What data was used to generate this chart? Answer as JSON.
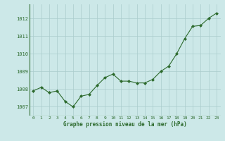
{
  "x": [
    0,
    1,
    2,
    3,
    4,
    5,
    6,
    7,
    8,
    9,
    10,
    11,
    12,
    13,
    14,
    15,
    16,
    17,
    18,
    19,
    20,
    21,
    22,
    23
  ],
  "y": [
    1007.9,
    1008.1,
    1007.8,
    1007.9,
    1007.3,
    1007.0,
    1007.6,
    1007.7,
    1008.2,
    1008.65,
    1008.85,
    1008.45,
    1008.45,
    1008.35,
    1008.35,
    1008.55,
    1009.0,
    1009.3,
    1010.0,
    1010.85,
    1011.55,
    1011.6,
    1012.0,
    1012.3
  ],
  "line_color": "#2d6a2d",
  "marker_color": "#2d6a2d",
  "bg_color": "#cce8e8",
  "grid_color": "#aacccc",
  "xlabel": "Graphe pression niveau de la mer (hPa)",
  "xlabel_color": "#2d6a2d",
  "tick_color": "#2d6a2d",
  "ylim": [
    1006.5,
    1012.8
  ],
  "yticks": [
    1007,
    1008,
    1009,
    1010,
    1011,
    1012
  ],
  "xticks": [
    0,
    1,
    2,
    3,
    4,
    5,
    6,
    7,
    8,
    9,
    10,
    11,
    12,
    13,
    14,
    15,
    16,
    17,
    18,
    19,
    20,
    21,
    22,
    23
  ]
}
